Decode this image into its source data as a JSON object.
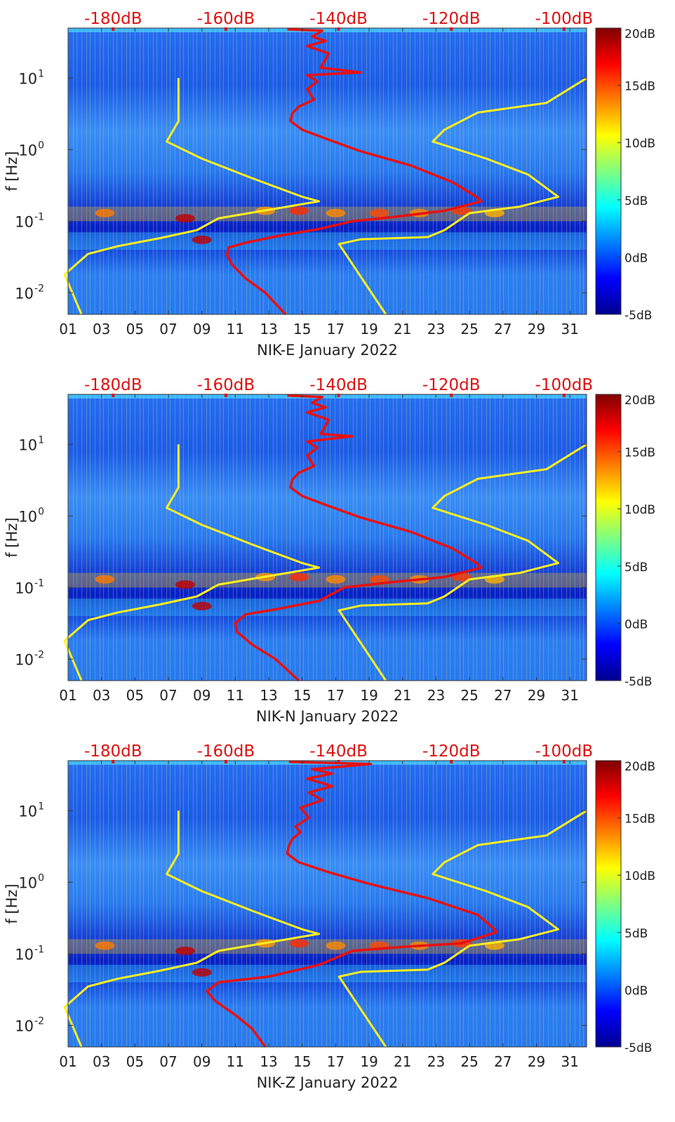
{
  "colors": {
    "noise_model": "#ffee22",
    "psd_curve": "#e81010",
    "top_axis_text": "#dd1111",
    "axis_text": "#222222"
  },
  "colorbar": {
    "ticks": [
      "20dB",
      "15dB",
      "10dB",
      "5dB",
      "0dB",
      "-5dB"
    ],
    "range": [
      -5,
      20
    ]
  },
  "chart_data": [
    {
      "type": "heatmap",
      "title": "NIK-E January 2022",
      "xlabel": "NIK-E January 2022",
      "ylabel": "f [Hz]",
      "x_ticks": [
        "01",
        "03",
        "05",
        "07",
        "09",
        "11",
        "13",
        "15",
        "17",
        "19",
        "21",
        "23",
        "25",
        "27",
        "29",
        "31"
      ],
      "x_range": [
        1,
        32
      ],
      "y_ticks": [
        "10^1",
        "10^0",
        "10^-1",
        "10^-2"
      ],
      "y_range_hz": [
        0.005,
        50
      ],
      "top_ticks": [
        "-180dB",
        "-160dB",
        "-140dB",
        "-120dB",
        "-100dB"
      ],
      "top_range_db": [
        -188,
        -96
      ],
      "noise_model_low": [
        [
          7.6,
          10
        ],
        [
          7.6,
          2.5
        ],
        [
          6.9,
          1.3
        ],
        [
          9,
          0.75
        ],
        [
          12,
          0.4
        ],
        [
          15,
          0.22
        ],
        [
          16,
          0.19
        ],
        [
          10,
          0.11
        ],
        [
          8.7,
          0.075
        ],
        [
          6.5,
          0.058
        ],
        [
          4,
          0.045
        ],
        [
          2.2,
          0.035
        ],
        [
          1.4,
          0.024
        ],
        [
          0.8,
          0.018
        ],
        [
          1.8,
          0.005
        ]
      ],
      "noise_model_high": [
        [
          32,
          10
        ],
        [
          29.6,
          4.5
        ],
        [
          25.5,
          3.3
        ],
        [
          23.5,
          1.9
        ],
        [
          22.8,
          1.3
        ],
        [
          26,
          0.75
        ],
        [
          28.5,
          0.45
        ],
        [
          30.3,
          0.22
        ],
        [
          28,
          0.16
        ],
        [
          25,
          0.13
        ],
        [
          23.5,
          0.075
        ],
        [
          22.5,
          0.06
        ],
        [
          18.5,
          0.056
        ],
        [
          17.2,
          0.048
        ],
        [
          20,
          0.005
        ]
      ],
      "psd_curve": [
        [
          14.1,
          48
        ],
        [
          16.2,
          46
        ],
        [
          15.6,
          38
        ],
        [
          16.4,
          33
        ],
        [
          15.3,
          28
        ],
        [
          16.6,
          22
        ],
        [
          16.1,
          14
        ],
        [
          18.5,
          12
        ],
        [
          15.3,
          11
        ],
        [
          15.9,
          9
        ],
        [
          15.3,
          7
        ],
        [
          15.7,
          5
        ],
        [
          14.8,
          4
        ],
        [
          14.4,
          3.2
        ],
        [
          14.3,
          2.5
        ],
        [
          15,
          1.9
        ],
        [
          16.5,
          1.4
        ],
        [
          18.5,
          0.95
        ],
        [
          21.5,
          0.6
        ],
        [
          24,
          0.35
        ],
        [
          25.4,
          0.22
        ],
        [
          25.7,
          0.19
        ],
        [
          23.5,
          0.14
        ],
        [
          20.5,
          0.115
        ],
        [
          18,
          0.1
        ],
        [
          16,
          0.078
        ],
        [
          13.5,
          0.062
        ],
        [
          11.6,
          0.05
        ],
        [
          10.6,
          0.043
        ],
        [
          10.5,
          0.034
        ],
        [
          10.8,
          0.025
        ],
        [
          11.6,
          0.016
        ],
        [
          12.8,
          0.01
        ],
        [
          14,
          0.005
        ]
      ]
    },
    {
      "type": "heatmap",
      "title": "NIK-N January 2022",
      "xlabel": "NIK-N January 2022",
      "ylabel": "f [Hz]",
      "x_ticks": [
        "01",
        "03",
        "05",
        "07",
        "09",
        "11",
        "13",
        "15",
        "17",
        "19",
        "21",
        "23",
        "25",
        "27",
        "29",
        "31"
      ],
      "x_range": [
        1,
        32
      ],
      "y_ticks": [
        "10^1",
        "10^0",
        "10^-1",
        "10^-2"
      ],
      "y_range_hz": [
        0.005,
        50
      ],
      "top_ticks": [
        "-180dB",
        "-160dB",
        "-140dB",
        "-120dB",
        "-100dB"
      ],
      "top_range_db": [
        -188,
        -96
      ],
      "noise_model_low": [
        [
          7.6,
          10
        ],
        [
          7.6,
          2.5
        ],
        [
          6.9,
          1.3
        ],
        [
          9,
          0.75
        ],
        [
          12,
          0.4
        ],
        [
          15,
          0.22
        ],
        [
          16,
          0.19
        ],
        [
          10,
          0.11
        ],
        [
          8.7,
          0.075
        ],
        [
          6.5,
          0.058
        ],
        [
          4,
          0.045
        ],
        [
          2.2,
          0.035
        ],
        [
          1.4,
          0.024
        ],
        [
          0.8,
          0.018
        ],
        [
          1.8,
          0.005
        ]
      ],
      "noise_model_high": [
        [
          32,
          10
        ],
        [
          29.6,
          4.5
        ],
        [
          25.5,
          3.3
        ],
        [
          23.5,
          1.9
        ],
        [
          22.8,
          1.3
        ],
        [
          26,
          0.75
        ],
        [
          28.5,
          0.45
        ],
        [
          30.3,
          0.22
        ],
        [
          28,
          0.16
        ],
        [
          25,
          0.13
        ],
        [
          23.5,
          0.075
        ],
        [
          22.5,
          0.06
        ],
        [
          18.5,
          0.056
        ],
        [
          17.2,
          0.048
        ],
        [
          20,
          0.005
        ]
      ],
      "psd_curve": [
        [
          14.1,
          48
        ],
        [
          16.2,
          46
        ],
        [
          15.6,
          38
        ],
        [
          16.4,
          33
        ],
        [
          15.3,
          28
        ],
        [
          16.6,
          22
        ],
        [
          16.1,
          14
        ],
        [
          18,
          13
        ],
        [
          15.3,
          11
        ],
        [
          15.9,
          9
        ],
        [
          15.3,
          7
        ],
        [
          15.7,
          5
        ],
        [
          14.8,
          4
        ],
        [
          14.4,
          3.2
        ],
        [
          14.3,
          2.5
        ],
        [
          15,
          1.9
        ],
        [
          16.5,
          1.4
        ],
        [
          18.5,
          0.95
        ],
        [
          21.5,
          0.6
        ],
        [
          24,
          0.35
        ],
        [
          25.4,
          0.22
        ],
        [
          25.7,
          0.19
        ],
        [
          23.5,
          0.14
        ],
        [
          20.5,
          0.12
        ],
        [
          17.5,
          0.1
        ],
        [
          16,
          0.065
        ],
        [
          13.5,
          0.05
        ],
        [
          11.6,
          0.042
        ],
        [
          11,
          0.032
        ],
        [
          11.1,
          0.024
        ],
        [
          12,
          0.016
        ],
        [
          13.4,
          0.01
        ],
        [
          14.8,
          0.005
        ]
      ]
    },
    {
      "type": "heatmap",
      "title": "NIK-Z January 2022",
      "xlabel": "NIK-Z January 2022",
      "ylabel": "f [Hz]",
      "x_ticks": [
        "01",
        "03",
        "05",
        "07",
        "09",
        "11",
        "13",
        "15",
        "17",
        "19",
        "21",
        "23",
        "25",
        "27",
        "29",
        "31"
      ],
      "x_range": [
        1,
        32
      ],
      "y_ticks": [
        "10^1",
        "10^0",
        "10^-1",
        "10^-2"
      ],
      "y_range_hz": [
        0.005,
        50
      ],
      "top_ticks": [
        "-180dB",
        "-160dB",
        "-140dB",
        "-120dB",
        "-100dB"
      ],
      "top_range_db": [
        -188,
        -96
      ],
      "noise_model_low": [
        [
          7.6,
          10
        ],
        [
          7.6,
          2.5
        ],
        [
          6.9,
          1.3
        ],
        [
          9,
          0.75
        ],
        [
          12,
          0.4
        ],
        [
          15,
          0.22
        ],
        [
          16,
          0.19
        ],
        [
          10,
          0.11
        ],
        [
          8.7,
          0.075
        ],
        [
          6.5,
          0.058
        ],
        [
          4,
          0.045
        ],
        [
          2.2,
          0.035
        ],
        [
          1.4,
          0.024
        ],
        [
          0.8,
          0.018
        ],
        [
          1.8,
          0.005
        ]
      ],
      "noise_model_high": [
        [
          32,
          10
        ],
        [
          29.6,
          4.5
        ],
        [
          25.5,
          3.3
        ],
        [
          23.5,
          1.9
        ],
        [
          22.8,
          1.3
        ],
        [
          26,
          0.75
        ],
        [
          28.5,
          0.45
        ],
        [
          30.3,
          0.22
        ],
        [
          28,
          0.16
        ],
        [
          25,
          0.13
        ],
        [
          23.5,
          0.075
        ],
        [
          22.5,
          0.06
        ],
        [
          18.5,
          0.056
        ],
        [
          17.2,
          0.048
        ],
        [
          20,
          0.005
        ]
      ],
      "psd_curve": [
        [
          14.2,
          48
        ],
        [
          19.1,
          45
        ],
        [
          15.6,
          38
        ],
        [
          16.8,
          33
        ],
        [
          15.3,
          28
        ],
        [
          16.8,
          22
        ],
        [
          15.4,
          18
        ],
        [
          16.2,
          14
        ],
        [
          14.9,
          11
        ],
        [
          15.4,
          8
        ],
        [
          14.6,
          6
        ],
        [
          14.9,
          5
        ],
        [
          14.4,
          4
        ],
        [
          14.2,
          3.2
        ],
        [
          14.1,
          2.5
        ],
        [
          14.8,
          1.9
        ],
        [
          16.5,
          1.4
        ],
        [
          19,
          0.95
        ],
        [
          22.5,
          0.6
        ],
        [
          25.5,
          0.35
        ],
        [
          26.5,
          0.22
        ],
        [
          26.6,
          0.2
        ],
        [
          24.5,
          0.14
        ],
        [
          21,
          0.125
        ],
        [
          18,
          0.11
        ],
        [
          16,
          0.07
        ],
        [
          13,
          0.048
        ],
        [
          10,
          0.04
        ],
        [
          9.3,
          0.03
        ],
        [
          9.8,
          0.022
        ],
        [
          11,
          0.014
        ],
        [
          12,
          0.009
        ],
        [
          12.8,
          0.005
        ]
      ]
    }
  ]
}
